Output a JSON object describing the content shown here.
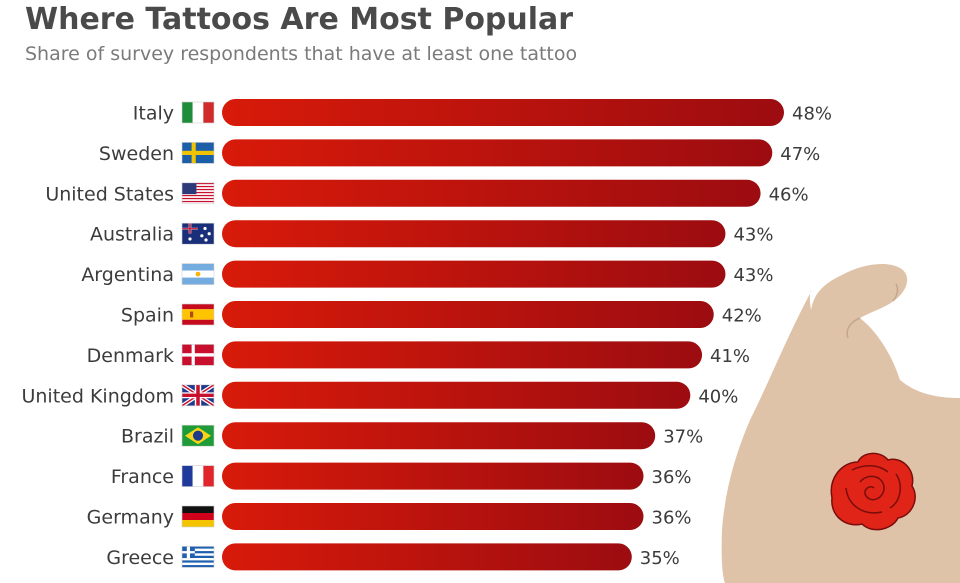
{
  "title": "Where Tattoos Are Most Popular",
  "subtitle": "Share of survey respondents that have at least one tattoo",
  "colors": {
    "bar_start": "#d81a0a",
    "bar_end": "#9c0c10",
    "arm": "#dfc3a8",
    "rose": "#e02418"
  },
  "chart_data": {
    "type": "bar",
    "orientation": "horizontal",
    "categories": [
      "Italy",
      "Sweden",
      "United States",
      "Australia",
      "Argentina",
      "Spain",
      "Denmark",
      "United Kingdom",
      "Brazil",
      "France",
      "Germany",
      "Greece"
    ],
    "values": [
      48,
      47,
      46,
      43,
      43,
      42,
      41,
      40,
      37,
      36,
      36,
      35
    ],
    "value_labels": [
      "48%",
      "47%",
      "46%",
      "43%",
      "43%",
      "42%",
      "41%",
      "40%",
      "37%",
      "36%",
      "36%",
      "35%"
    ],
    "flag_icons": [
      "italy-flag-icon",
      "sweden-flag-icon",
      "united-states-flag-icon",
      "australia-flag-icon",
      "argentina-flag-icon",
      "spain-flag-icon",
      "denmark-flag-icon",
      "united-kingdom-flag-icon",
      "brazil-flag-icon",
      "france-flag-icon",
      "germany-flag-icon",
      "greece-flag-icon"
    ],
    "unit": "%",
    "xlim": [
      0,
      48
    ],
    "grid": false,
    "legend": "none"
  },
  "decoration": {
    "arm_icon": "flexed-arm-icon",
    "tattoo_icon": "rose-tattoo-icon"
  }
}
